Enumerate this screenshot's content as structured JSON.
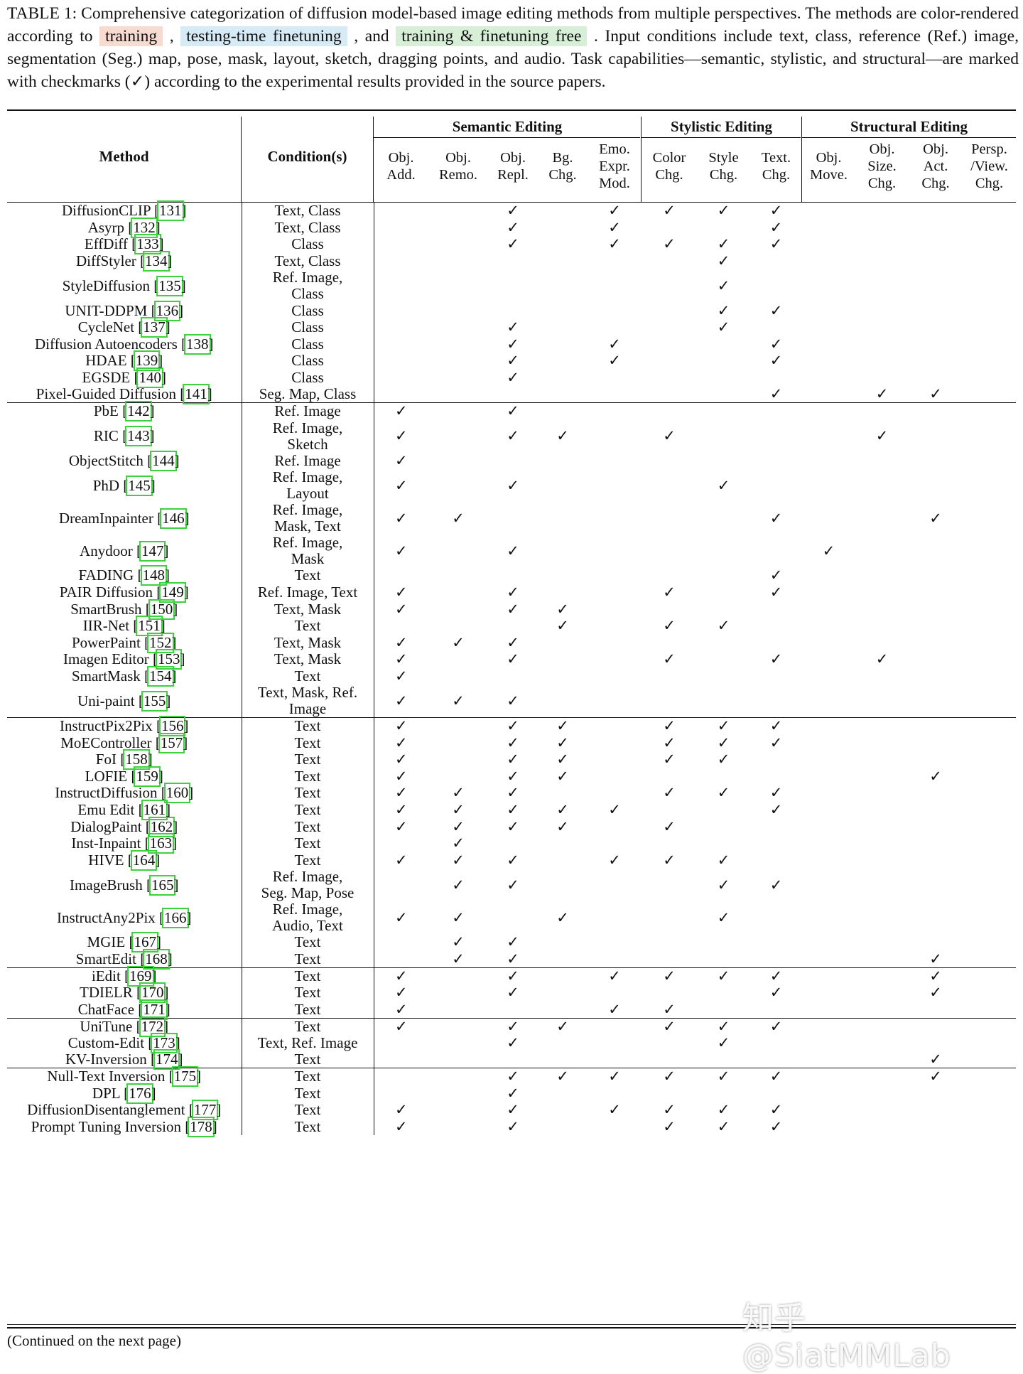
{
  "caption": {
    "prefix": "TABLE 1: Comprehensive categorization of diffusion model-based image editing methods from multiple perspectives. The methods are color-rendered according to ",
    "legend_training": "training",
    "sep1": " , ",
    "legend_testing": "testing-time finetuning",
    "sep2": " , and ",
    "legend_free": "training & finetuning free",
    "suffix": " . Input conditions include text, class, reference (Ref.) image, segmentation (Seg.) map, pose, mask, layout, sketch, dragging points, and audio. Task capabilities—semantic, stylistic, and structural—are marked with checkmarks (✓) according to the experimental results provided in the source papers."
  },
  "colors": {
    "training": "#f7dbd1",
    "testing": "#d7ebf6",
    "free": "#d6efd6",
    "ref_box": "#3ed13e"
  },
  "header": {
    "method": "Method",
    "conditions": "Condition(s)",
    "groups": [
      "Semantic Editing",
      "Stylistic Editing",
      "Structural Editing"
    ],
    "columns": [
      [
        "Obj.",
        "Add."
      ],
      [
        "Obj.",
        "Remo."
      ],
      [
        "Obj.",
        "Repl."
      ],
      [
        "Bg.",
        "Chg."
      ],
      [
        "Emo.",
        "Expr.",
        "Mod."
      ],
      [
        "Color",
        "Chg."
      ],
      [
        "Style",
        "Chg."
      ],
      [
        "Text.",
        "Chg."
      ],
      [
        "Obj.",
        "Move."
      ],
      [
        "Obj.",
        "Size.",
        "Chg."
      ],
      [
        "Obj.",
        "Act.",
        "Chg."
      ],
      [
        "Persp.",
        "/View.",
        "Chg."
      ]
    ]
  },
  "check_mark": "✓",
  "rows": [
    {
      "name": "DiffusionCLIP",
      "ref": "131",
      "cond": [
        "Text, Class"
      ],
      "checks": [
        0,
        0,
        1,
        0,
        1,
        1,
        1,
        1,
        0,
        0,
        0,
        0
      ],
      "cat": "training",
      "group_start": false
    },
    {
      "name": "Asyrp",
      "ref": "132",
      "cond": [
        "Text, Class"
      ],
      "checks": [
        0,
        0,
        1,
        0,
        1,
        0,
        0,
        1,
        0,
        0,
        0,
        0
      ],
      "cat": "training",
      "group_start": false
    },
    {
      "name": "EffDiff",
      "ref": "133",
      "cond": [
        "Class"
      ],
      "checks": [
        0,
        0,
        1,
        0,
        1,
        1,
        1,
        1,
        0,
        0,
        0,
        0
      ],
      "cat": "training",
      "group_start": false
    },
    {
      "name": "DiffStyler",
      "ref": "134",
      "cond": [
        "Text, Class"
      ],
      "checks": [
        0,
        0,
        0,
        0,
        0,
        0,
        1,
        0,
        0,
        0,
        0,
        0
      ],
      "cat": "training",
      "group_start": false
    },
    {
      "name": "StyleDiffusion",
      "ref": "135",
      "cond": [
        "Ref. Image,",
        "Class"
      ],
      "checks": [
        0,
        0,
        0,
        0,
        0,
        0,
        1,
        0,
        0,
        0,
        0,
        0
      ],
      "cat": "training",
      "group_start": false
    },
    {
      "name": "UNIT-DDPM",
      "ref": "136",
      "cond": [
        "Class"
      ],
      "checks": [
        0,
        0,
        0,
        0,
        0,
        0,
        1,
        1,
        0,
        0,
        0,
        0
      ],
      "cat": "training",
      "group_start": false
    },
    {
      "name": "CycleNet",
      "ref": "137",
      "cond": [
        "Class"
      ],
      "checks": [
        0,
        0,
        1,
        0,
        0,
        0,
        1,
        0,
        0,
        0,
        0,
        0
      ],
      "cat": "training",
      "group_start": false
    },
    {
      "name": "Diffusion Autoencoders",
      "ref": "138",
      "cond": [
        "Class"
      ],
      "checks": [
        0,
        0,
        1,
        0,
        1,
        0,
        0,
        1,
        0,
        0,
        0,
        0
      ],
      "cat": "training",
      "group_start": false
    },
    {
      "name": "HDAE",
      "ref": "139",
      "cond": [
        "Class"
      ],
      "checks": [
        0,
        0,
        1,
        0,
        1,
        0,
        0,
        1,
        0,
        0,
        0,
        0
      ],
      "cat": "training",
      "group_start": false
    },
    {
      "name": "EGSDE",
      "ref": "140",
      "cond": [
        "Class"
      ],
      "checks": [
        0,
        0,
        1,
        0,
        0,
        0,
        0,
        0,
        0,
        0,
        0,
        0
      ],
      "cat": "training",
      "group_start": false
    },
    {
      "name": "Pixel-Guided Diffusion",
      "ref": "141",
      "cond": [
        "Seg. Map, Class"
      ],
      "checks": [
        0,
        0,
        0,
        0,
        0,
        0,
        0,
        1,
        0,
        1,
        1,
        0
      ],
      "cat": "training",
      "group_start": false
    },
    {
      "name": "PbE",
      "ref": "142",
      "cond": [
        "Ref. Image"
      ],
      "checks": [
        1,
        0,
        1,
        0,
        0,
        0,
        0,
        0,
        0,
        0,
        0,
        0
      ],
      "cat": "training",
      "group_start": true
    },
    {
      "name": "RIC",
      "ref": "143",
      "cond": [
        "Ref. Image,",
        "Sketch"
      ],
      "checks": [
        1,
        0,
        1,
        1,
        0,
        1,
        0,
        0,
        0,
        1,
        0,
        0
      ],
      "cat": "training",
      "group_start": false
    },
    {
      "name": "ObjectStitch",
      "ref": "144",
      "cond": [
        "Ref. Image"
      ],
      "checks": [
        1,
        0,
        0,
        0,
        0,
        0,
        0,
        0,
        0,
        0,
        0,
        0
      ],
      "cat": "training",
      "group_start": false
    },
    {
      "name": "PhD",
      "ref": "145",
      "cond": [
        "Ref. Image,",
        "Layout"
      ],
      "checks": [
        1,
        0,
        1,
        0,
        0,
        0,
        1,
        0,
        0,
        0,
        0,
        0
      ],
      "cat": "training",
      "group_start": false
    },
    {
      "name": "DreamInpainter",
      "ref": "146",
      "cond": [
        "Ref. Image,",
        "Mask, Text"
      ],
      "checks": [
        1,
        1,
        0,
        0,
        0,
        0,
        0,
        1,
        0,
        0,
        1,
        0
      ],
      "cat": "training",
      "group_start": false
    },
    {
      "name": "Anydoor",
      "ref": "147",
      "cond": [
        "Ref. Image,",
        "Mask"
      ],
      "checks": [
        1,
        0,
        1,
        0,
        0,
        0,
        0,
        0,
        1,
        0,
        0,
        0
      ],
      "cat": "training",
      "group_start": false
    },
    {
      "name": "FADING",
      "ref": "148",
      "cond": [
        "Text"
      ],
      "checks": [
        0,
        0,
        0,
        0,
        0,
        0,
        0,
        1,
        0,
        0,
        0,
        0
      ],
      "cat": "training",
      "group_start": false
    },
    {
      "name": "PAIR Diffusion",
      "ref": "149",
      "cond": [
        "Ref. Image, Text"
      ],
      "checks": [
        1,
        0,
        1,
        0,
        0,
        1,
        0,
        1,
        0,
        0,
        0,
        0
      ],
      "cat": "training",
      "group_start": false
    },
    {
      "name": "SmartBrush",
      "ref": "150",
      "cond": [
        "Text, Mask"
      ],
      "checks": [
        1,
        0,
        1,
        1,
        0,
        0,
        0,
        0,
        0,
        0,
        0,
        0
      ],
      "cat": "training",
      "group_start": false
    },
    {
      "name": "IIR-Net",
      "ref": "151",
      "cond": [
        "Text"
      ],
      "checks": [
        0,
        0,
        0,
        1,
        0,
        1,
        1,
        0,
        0,
        0,
        0,
        0
      ],
      "cat": "training",
      "group_start": false
    },
    {
      "name": "PowerPaint",
      "ref": "152",
      "cond": [
        "Text, Mask"
      ],
      "checks": [
        1,
        1,
        1,
        0,
        0,
        0,
        0,
        0,
        0,
        0,
        0,
        0
      ],
      "cat": "training",
      "group_start": false
    },
    {
      "name": "Imagen Editor",
      "ref": "153",
      "cond": [
        "Text, Mask"
      ],
      "checks": [
        1,
        0,
        1,
        0,
        0,
        1,
        0,
        1,
        0,
        1,
        0,
        0
      ],
      "cat": "training",
      "group_start": false
    },
    {
      "name": "SmartMask",
      "ref": "154",
      "cond": [
        "Text"
      ],
      "checks": [
        1,
        0,
        0,
        0,
        0,
        0,
        0,
        0,
        0,
        0,
        0,
        0
      ],
      "cat": "training",
      "group_start": false
    },
    {
      "name": "Uni-paint",
      "ref": "155",
      "cond": [
        "Text, Mask, Ref.",
        "Image"
      ],
      "checks": [
        1,
        1,
        1,
        0,
        0,
        0,
        0,
        0,
        0,
        0,
        0,
        0
      ],
      "cat": "training",
      "group_start": false
    },
    {
      "name": "InstructPix2Pix",
      "ref": "156",
      "cond": [
        "Text"
      ],
      "checks": [
        1,
        0,
        1,
        1,
        0,
        1,
        1,
        1,
        0,
        0,
        0,
        0
      ],
      "cat": "training",
      "group_start": true
    },
    {
      "name": "MoEController",
      "ref": "157",
      "cond": [
        "Text"
      ],
      "checks": [
        1,
        0,
        1,
        1,
        0,
        1,
        1,
        1,
        0,
        0,
        0,
        0
      ],
      "cat": "training",
      "group_start": false
    },
    {
      "name": "FoI",
      "ref": "158",
      "cond": [
        "Text"
      ],
      "checks": [
        1,
        0,
        1,
        1,
        0,
        1,
        1,
        0,
        0,
        0,
        0,
        0
      ],
      "cat": "training",
      "group_start": false
    },
    {
      "name": "LOFIE",
      "ref": "159",
      "cond": [
        "Text"
      ],
      "checks": [
        1,
        0,
        1,
        1,
        0,
        0,
        0,
        0,
        0,
        0,
        1,
        0
      ],
      "cat": "training",
      "group_start": false
    },
    {
      "name": "InstructDiffusion",
      "ref": "160",
      "cond": [
        "Text"
      ],
      "checks": [
        1,
        1,
        1,
        0,
        0,
        1,
        1,
        1,
        0,
        0,
        0,
        0
      ],
      "cat": "training",
      "group_start": false
    },
    {
      "name": "Emu Edit",
      "ref": "161",
      "cond": [
        "Text"
      ],
      "checks": [
        1,
        1,
        1,
        1,
        1,
        0,
        0,
        1,
        0,
        0,
        0,
        0
      ],
      "cat": "training",
      "group_start": false
    },
    {
      "name": "DialogPaint",
      "ref": "162",
      "cond": [
        "Text"
      ],
      "checks": [
        1,
        1,
        1,
        1,
        0,
        1,
        0,
        0,
        0,
        0,
        0,
        0
      ],
      "cat": "training",
      "group_start": false
    },
    {
      "name": "Inst-Inpaint",
      "ref": "163",
      "cond": [
        "Text"
      ],
      "checks": [
        0,
        1,
        0,
        0,
        0,
        0,
        0,
        0,
        0,
        0,
        0,
        0
      ],
      "cat": "training",
      "group_start": false
    },
    {
      "name": "HIVE",
      "ref": "164",
      "cond": [
        "Text"
      ],
      "checks": [
        1,
        1,
        1,
        0,
        1,
        1,
        1,
        0,
        0,
        0,
        0,
        0
      ],
      "cat": "training",
      "group_start": false
    },
    {
      "name": "ImageBrush",
      "ref": "165",
      "cond": [
        "Ref. Image,",
        "Seg. Map, Pose"
      ],
      "checks": [
        0,
        1,
        1,
        0,
        0,
        0,
        1,
        1,
        0,
        0,
        0,
        0
      ],
      "cat": "training",
      "group_start": false
    },
    {
      "name": "InstructAny2Pix",
      "ref": "166",
      "cond": [
        "Ref. Image,",
        "Audio, Text"
      ],
      "checks": [
        1,
        1,
        0,
        1,
        0,
        0,
        1,
        0,
        0,
        0,
        0,
        0
      ],
      "cat": "training",
      "group_start": false
    },
    {
      "name": "MGIE",
      "ref": "167",
      "cond": [
        "Text"
      ],
      "checks": [
        0,
        1,
        1,
        0,
        0,
        0,
        0,
        0,
        0,
        0,
        0,
        0
      ],
      "cat": "training",
      "group_start": false
    },
    {
      "name": "SmartEdit",
      "ref": "168",
      "cond": [
        "Text"
      ],
      "checks": [
        0,
        1,
        1,
        0,
        0,
        0,
        0,
        0,
        0,
        0,
        1,
        0
      ],
      "cat": "training",
      "group_start": false
    },
    {
      "name": "iEdit",
      "ref": "169",
      "cond": [
        "Text"
      ],
      "checks": [
        1,
        0,
        1,
        0,
        1,
        1,
        1,
        1,
        0,
        0,
        1,
        0
      ],
      "cat": "training",
      "group_start": true
    },
    {
      "name": "TDIELR",
      "ref": "170",
      "cond": [
        "Text"
      ],
      "checks": [
        1,
        0,
        1,
        0,
        0,
        0,
        0,
        1,
        0,
        0,
        1,
        0
      ],
      "cat": "training",
      "group_start": false
    },
    {
      "name": "ChatFace",
      "ref": "171",
      "cond": [
        "Text"
      ],
      "checks": [
        1,
        0,
        0,
        0,
        1,
        1,
        0,
        0,
        0,
        0,
        0,
        0
      ],
      "cat": "training",
      "group_start": false
    },
    {
      "name": "UniTune",
      "ref": "172",
      "cond": [
        "Text"
      ],
      "checks": [
        1,
        0,
        1,
        1,
        0,
        1,
        1,
        1,
        0,
        0,
        0,
        0
      ],
      "cat": "testing",
      "group_start": true
    },
    {
      "name": "Custom-Edit",
      "ref": "173",
      "cond": [
        "Text, Ref. Image"
      ],
      "checks": [
        0,
        0,
        1,
        0,
        0,
        0,
        1,
        0,
        0,
        0,
        0,
        0
      ],
      "cat": "testing",
      "group_start": false
    },
    {
      "name": "KV-Inversion",
      "ref": "174",
      "cond": [
        "Text"
      ],
      "checks": [
        0,
        0,
        0,
        0,
        0,
        0,
        0,
        0,
        0,
        0,
        1,
        0
      ],
      "cat": "testing",
      "group_start": false
    },
    {
      "name": "Null-Text Inversion",
      "ref": "175",
      "cond": [
        "Text"
      ],
      "checks": [
        0,
        0,
        1,
        1,
        1,
        1,
        1,
        1,
        0,
        0,
        1,
        0
      ],
      "cat": "testing",
      "group_start": true
    },
    {
      "name": "DPL",
      "ref": "176",
      "cond": [
        "Text"
      ],
      "checks": [
        0,
        0,
        1,
        0,
        0,
        0,
        0,
        0,
        0,
        0,
        0,
        0
      ],
      "cat": "testing",
      "group_start": false
    },
    {
      "name": "DiffusionDisentanglement",
      "ref": "177",
      "cond": [
        "Text"
      ],
      "checks": [
        1,
        0,
        1,
        0,
        1,
        1,
        1,
        1,
        0,
        0,
        0,
        0
      ],
      "cat": "testing",
      "group_start": false
    },
    {
      "name": "Prompt Tuning Inversion",
      "ref": "178",
      "cond": [
        "Text"
      ],
      "checks": [
        1,
        0,
        1,
        0,
        0,
        1,
        1,
        1,
        0,
        0,
        0,
        0
      ],
      "cat": "testing",
      "group_start": false
    }
  ],
  "footer": "(Continued on the next page)",
  "watermark": "知乎 @SiatMMLab"
}
